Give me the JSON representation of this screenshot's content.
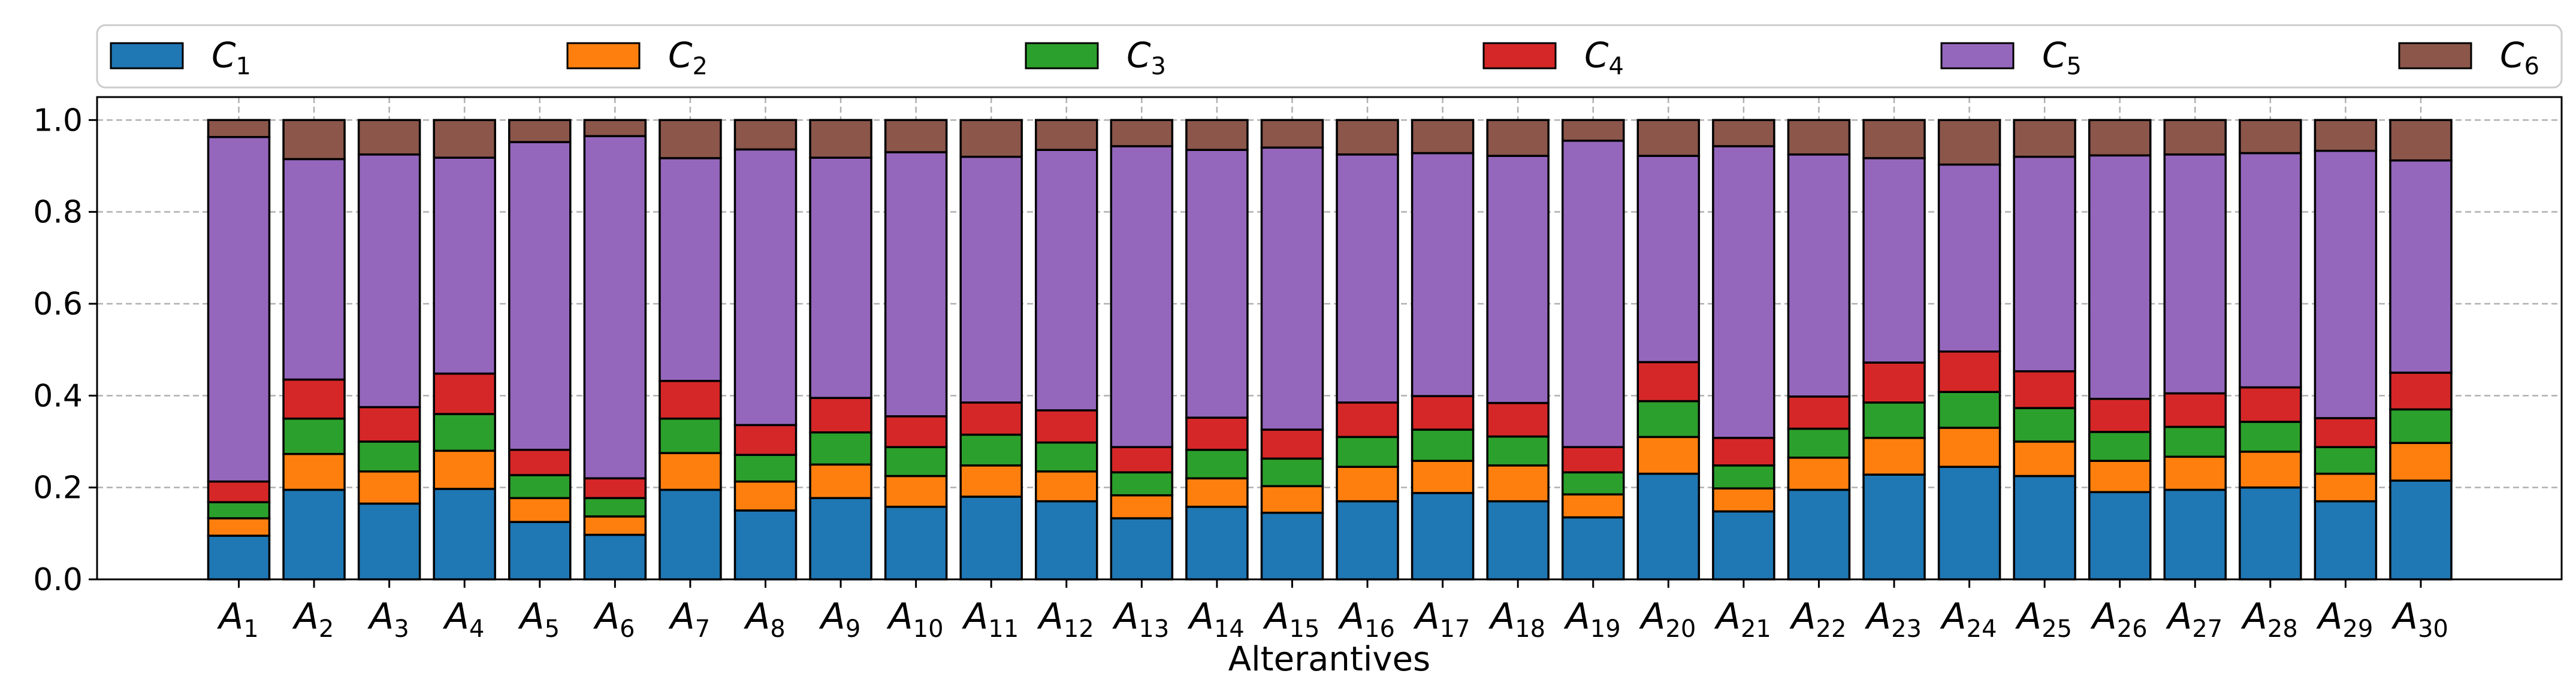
{
  "chart_data": {
    "type": "bar",
    "stacked": true,
    "title": "",
    "xlabel": "Alterantives",
    "ylabel": "",
    "ylim": [
      0,
      1.05
    ],
    "yticks": [
      0.0,
      0.2,
      0.4,
      0.6,
      0.8,
      1.0
    ],
    "ytick_labels": [
      "0.0",
      "0.2",
      "0.4",
      "0.6",
      "0.8",
      "1.0"
    ],
    "grid": true,
    "legend_position": "top",
    "categories": [
      {
        "base": "A",
        "sub": "1"
      },
      {
        "base": "A",
        "sub": "2"
      },
      {
        "base": "A",
        "sub": "3"
      },
      {
        "base": "A",
        "sub": "4"
      },
      {
        "base": "A",
        "sub": "5"
      },
      {
        "base": "A",
        "sub": "6"
      },
      {
        "base": "A",
        "sub": "7"
      },
      {
        "base": "A",
        "sub": "8"
      },
      {
        "base": "A",
        "sub": "9"
      },
      {
        "base": "A",
        "sub": "10"
      },
      {
        "base": "A",
        "sub": "11"
      },
      {
        "base": "A",
        "sub": "12"
      },
      {
        "base": "A",
        "sub": "13"
      },
      {
        "base": "A",
        "sub": "14"
      },
      {
        "base": "A",
        "sub": "15"
      },
      {
        "base": "A",
        "sub": "16"
      },
      {
        "base": "A",
        "sub": "17"
      },
      {
        "base": "A",
        "sub": "18"
      },
      {
        "base": "A",
        "sub": "19"
      },
      {
        "base": "A",
        "sub": "20"
      },
      {
        "base": "A",
        "sub": "21"
      },
      {
        "base": "A",
        "sub": "22"
      },
      {
        "base": "A",
        "sub": "23"
      },
      {
        "base": "A",
        "sub": "24"
      },
      {
        "base": "A",
        "sub": "25"
      },
      {
        "base": "A",
        "sub": "26"
      },
      {
        "base": "A",
        "sub": "27"
      },
      {
        "base": "A",
        "sub": "28"
      },
      {
        "base": "A",
        "sub": "29"
      },
      {
        "base": "A",
        "sub": "30"
      }
    ],
    "series": [
      {
        "name": "C1",
        "base": "C",
        "sub": "1",
        "color": "#1f77b4",
        "values": [
          0.095,
          0.195,
          0.165,
          0.197,
          0.125,
          0.097,
          0.195,
          0.15,
          0.177,
          0.158,
          0.18,
          0.17,
          0.133,
          0.158,
          0.145,
          0.17,
          0.188,
          0.17,
          0.135,
          0.23,
          0.148,
          0.195,
          0.228,
          0.245,
          0.225,
          0.19,
          0.195,
          0.2,
          0.17,
          0.215
        ]
      },
      {
        "name": "C2",
        "base": "C",
        "sub": "2",
        "color": "#ff7f0e",
        "values": [
          0.038,
          0.078,
          0.07,
          0.083,
          0.052,
          0.04,
          0.08,
          0.063,
          0.073,
          0.067,
          0.068,
          0.065,
          0.05,
          0.062,
          0.058,
          0.075,
          0.07,
          0.078,
          0.05,
          0.08,
          0.05,
          0.07,
          0.08,
          0.085,
          0.075,
          0.068,
          0.072,
          0.078,
          0.06,
          0.082
        ]
      },
      {
        "name": "C3",
        "base": "C",
        "sub": "3",
        "color": "#2ca02c",
        "values": [
          0.035,
          0.077,
          0.065,
          0.08,
          0.05,
          0.04,
          0.075,
          0.058,
          0.07,
          0.063,
          0.067,
          0.063,
          0.05,
          0.062,
          0.06,
          0.065,
          0.068,
          0.063,
          0.048,
          0.078,
          0.05,
          0.063,
          0.077,
          0.078,
          0.073,
          0.063,
          0.065,
          0.065,
          0.058,
          0.073
        ]
      },
      {
        "name": "C4",
        "base": "C",
        "sub": "4",
        "color": "#d62728",
        "values": [
          0.045,
          0.085,
          0.075,
          0.088,
          0.055,
          0.043,
          0.082,
          0.065,
          0.075,
          0.067,
          0.07,
          0.07,
          0.055,
          0.07,
          0.063,
          0.075,
          0.073,
          0.073,
          0.055,
          0.085,
          0.06,
          0.07,
          0.087,
          0.088,
          0.08,
          0.072,
          0.073,
          0.075,
          0.063,
          0.08
        ]
      },
      {
        "name": "C5",
        "base": "C",
        "sub": "5",
        "color": "#9467bd",
        "values": [
          0.75,
          0.48,
          0.55,
          0.47,
          0.67,
          0.745,
          0.485,
          0.6,
          0.523,
          0.575,
          0.535,
          0.567,
          0.655,
          0.583,
          0.614,
          0.54,
          0.529,
          0.538,
          0.667,
          0.449,
          0.635,
          0.527,
          0.445,
          0.407,
          0.467,
          0.53,
          0.52,
          0.51,
          0.582,
          0.462
        ]
      },
      {
        "name": "C6",
        "base": "C",
        "sub": "6",
        "color": "#8c564b",
        "values": [
          0.037,
          0.085,
          0.075,
          0.082,
          0.048,
          0.035,
          0.083,
          0.064,
          0.082,
          0.07,
          0.08,
          0.065,
          0.057,
          0.065,
          0.06,
          0.075,
          0.072,
          0.078,
          0.045,
          0.078,
          0.057,
          0.075,
          0.083,
          0.097,
          0.08,
          0.077,
          0.075,
          0.072,
          0.067,
          0.088
        ]
      }
    ]
  }
}
